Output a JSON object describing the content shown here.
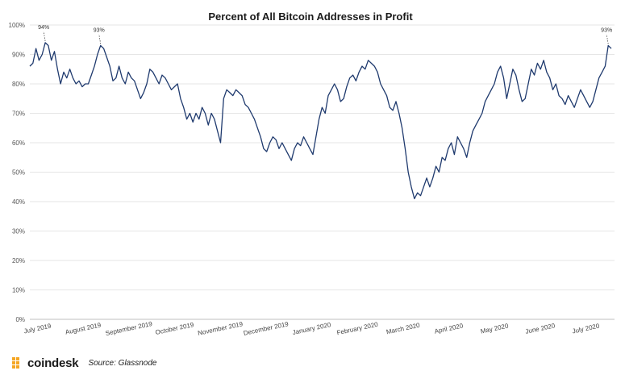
{
  "chart_data": {
    "type": "line",
    "title": "Percent of All Bitcoin Addresses in Profit",
    "xlabel": "",
    "ylabel": "",
    "ylim": [
      0,
      100
    ],
    "yticks": [
      "0%",
      "10%",
      "20%",
      "30%",
      "40%",
      "50%",
      "60%",
      "70%",
      "80%",
      "90%",
      "100%"
    ],
    "xticks": [
      "July 2019",
      "August 2019",
      "September 2019",
      "October 2019",
      "November 2019",
      "December 2019",
      "January 2020",
      "February 2020",
      "March 2020",
      "April 2020",
      "May 2020",
      "June 2020",
      "July 2020"
    ],
    "grid": true,
    "series": [
      {
        "color": "#1f3a6e",
        "points": [
          [
            0,
            86
          ],
          [
            1,
            87
          ],
          [
            2,
            92
          ],
          [
            3,
            88
          ],
          [
            4,
            90
          ],
          [
            5,
            94
          ],
          [
            6,
            93
          ],
          [
            7,
            88
          ],
          [
            8,
            91
          ],
          [
            9,
            85
          ],
          [
            10,
            80
          ],
          [
            11,
            84
          ],
          [
            12,
            82
          ],
          [
            13,
            85
          ],
          [
            14,
            82
          ],
          [
            15,
            80
          ],
          [
            16,
            81
          ],
          [
            17,
            79
          ],
          [
            18,
            80
          ],
          [
            19,
            80
          ],
          [
            20,
            83
          ],
          [
            21,
            86
          ],
          [
            22,
            90
          ],
          [
            23,
            93
          ],
          [
            24,
            92
          ],
          [
            25,
            89
          ],
          [
            26,
            86
          ],
          [
            27,
            81
          ],
          [
            28,
            82
          ],
          [
            29,
            86
          ],
          [
            30,
            82
          ],
          [
            31,
            80
          ],
          [
            32,
            84
          ],
          [
            33,
            82
          ],
          [
            34,
            81
          ],
          [
            35,
            78
          ],
          [
            36,
            75
          ],
          [
            37,
            77
          ],
          [
            38,
            80
          ],
          [
            39,
            85
          ],
          [
            40,
            84
          ],
          [
            41,
            82
          ],
          [
            42,
            80
          ],
          [
            43,
            83
          ],
          [
            44,
            82
          ],
          [
            45,
            80
          ],
          [
            46,
            78
          ],
          [
            47,
            79
          ],
          [
            48,
            80
          ],
          [
            49,
            75
          ],
          [
            50,
            72
          ],
          [
            51,
            68
          ],
          [
            52,
            70
          ],
          [
            53,
            67
          ],
          [
            54,
            70
          ],
          [
            55,
            68
          ],
          [
            56,
            72
          ],
          [
            57,
            70
          ],
          [
            58,
            66
          ],
          [
            59,
            70
          ],
          [
            60,
            68
          ],
          [
            61,
            64
          ],
          [
            62,
            60
          ],
          [
            63,
            75
          ],
          [
            64,
            78
          ],
          [
            65,
            77
          ],
          [
            66,
            76
          ],
          [
            67,
            78
          ],
          [
            68,
            77
          ],
          [
            69,
            76
          ],
          [
            70,
            73
          ],
          [
            71,
            72
          ],
          [
            72,
            70
          ],
          [
            73,
            68
          ],
          [
            74,
            65
          ],
          [
            75,
            62
          ],
          [
            76,
            58
          ],
          [
            77,
            57
          ],
          [
            78,
            60
          ],
          [
            79,
            62
          ],
          [
            80,
            61
          ],
          [
            81,
            58
          ],
          [
            82,
            60
          ],
          [
            83,
            58
          ],
          [
            84,
            56
          ],
          [
            85,
            54
          ],
          [
            86,
            58
          ],
          [
            87,
            60
          ],
          [
            88,
            59
          ],
          [
            89,
            62
          ],
          [
            90,
            60
          ],
          [
            91,
            58
          ],
          [
            92,
            56
          ],
          [
            93,
            62
          ],
          [
            94,
            68
          ],
          [
            95,
            72
          ],
          [
            96,
            70
          ],
          [
            97,
            76
          ],
          [
            98,
            78
          ],
          [
            99,
            80
          ],
          [
            100,
            78
          ],
          [
            101,
            74
          ],
          [
            102,
            75
          ],
          [
            103,
            79
          ],
          [
            104,
            82
          ],
          [
            105,
            83
          ],
          [
            106,
            81
          ],
          [
            107,
            84
          ],
          [
            108,
            86
          ],
          [
            109,
            85
          ],
          [
            110,
            88
          ],
          [
            111,
            87
          ],
          [
            112,
            86
          ],
          [
            113,
            84
          ],
          [
            114,
            80
          ],
          [
            115,
            78
          ],
          [
            116,
            76
          ],
          [
            117,
            72
          ],
          [
            118,
            71
          ],
          [
            119,
            74
          ],
          [
            120,
            70
          ],
          [
            121,
            65
          ],
          [
            122,
            58
          ],
          [
            123,
            50
          ],
          [
            124,
            45
          ],
          [
            125,
            41
          ],
          [
            126,
            43
          ],
          [
            127,
            42
          ],
          [
            128,
            45
          ],
          [
            129,
            48
          ],
          [
            130,
            45
          ],
          [
            131,
            48
          ],
          [
            132,
            52
          ],
          [
            133,
            50
          ],
          [
            134,
            55
          ],
          [
            135,
            54
          ],
          [
            136,
            58
          ],
          [
            137,
            60
          ],
          [
            138,
            56
          ],
          [
            139,
            62
          ],
          [
            140,
            60
          ],
          [
            141,
            58
          ],
          [
            142,
            55
          ],
          [
            143,
            60
          ],
          [
            144,
            64
          ],
          [
            145,
            66
          ],
          [
            146,
            68
          ],
          [
            147,
            70
          ],
          [
            148,
            74
          ],
          [
            149,
            76
          ],
          [
            150,
            78
          ],
          [
            151,
            80
          ],
          [
            152,
            84
          ],
          [
            153,
            86
          ],
          [
            154,
            82
          ],
          [
            155,
            75
          ],
          [
            156,
            80
          ],
          [
            157,
            85
          ],
          [
            158,
            83
          ],
          [
            159,
            78
          ],
          [
            160,
            74
          ],
          [
            161,
            75
          ],
          [
            162,
            80
          ],
          [
            163,
            85
          ],
          [
            164,
            83
          ],
          [
            165,
            87
          ],
          [
            166,
            85
          ],
          [
            167,
            88
          ],
          [
            168,
            84
          ],
          [
            169,
            82
          ],
          [
            170,
            78
          ],
          [
            171,
            80
          ],
          [
            172,
            76
          ],
          [
            173,
            75
          ],
          [
            174,
            73
          ],
          [
            175,
            76
          ],
          [
            176,
            74
          ],
          [
            177,
            72
          ],
          [
            178,
            75
          ],
          [
            179,
            78
          ],
          [
            180,
            76
          ],
          [
            181,
            74
          ],
          [
            182,
            72
          ],
          [
            183,
            74
          ],
          [
            184,
            78
          ],
          [
            185,
            82
          ],
          [
            186,
            84
          ],
          [
            187,
            86
          ],
          [
            188,
            93
          ],
          [
            189,
            92
          ]
        ]
      }
    ],
    "annotations": [
      {
        "text": "94%",
        "x": 5,
        "y": 94
      },
      {
        "text": "93%",
        "x": 23,
        "y": 93
      },
      {
        "text": "93%",
        "x": 188,
        "y": 93
      }
    ]
  },
  "footer": {
    "logo_text": "coindesk",
    "source": "Source: Glassnode"
  },
  "colors": {
    "line": "#1f3a6e",
    "logo_accent": "#f5a623"
  }
}
